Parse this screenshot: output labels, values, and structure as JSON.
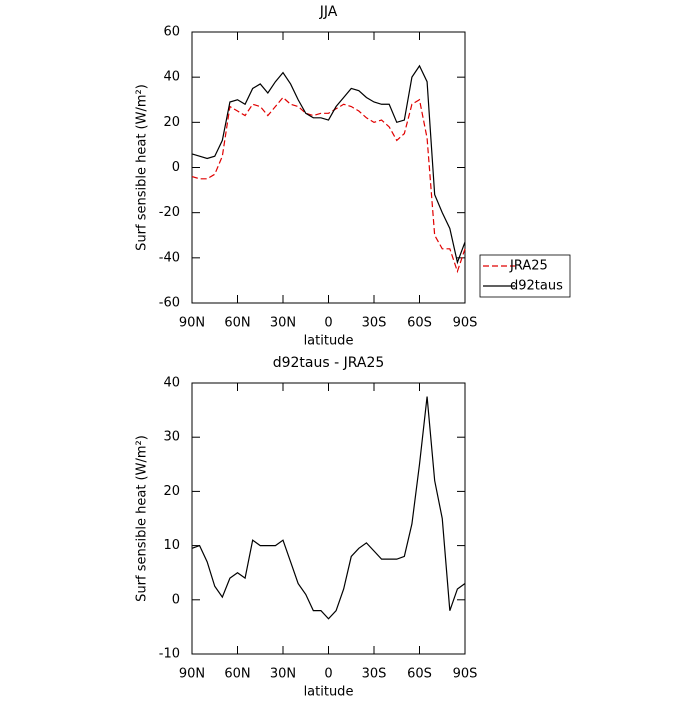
{
  "chart_data": [
    {
      "type": "line",
      "title": "JJA",
      "xlabel": "latitude",
      "ylabel": "Surf sensible heat (W/m²)",
      "x": [
        90,
        85,
        80,
        75,
        70,
        65,
        60,
        55,
        50,
        45,
        40,
        35,
        30,
        25,
        20,
        15,
        10,
        5,
        0,
        -5,
        -10,
        -15,
        -20,
        -25,
        -30,
        -35,
        -40,
        -45,
        -50,
        -55,
        -60,
        -65,
        -70,
        -75,
        -80,
        -85,
        -90
      ],
      "series": [
        {
          "name": "JRA25",
          "color": "#e00000",
          "dashed": true,
          "values": [
            -4,
            -5,
            -5,
            -3,
            5,
            27,
            25,
            23,
            28,
            27,
            23,
            27,
            31,
            28,
            27,
            24,
            23,
            24,
            24,
            26,
            28,
            27,
            25,
            22,
            20,
            21,
            18,
            12,
            15,
            28,
            30,
            13,
            -30,
            -36,
            -36,
            -46,
            -36
          ]
        },
        {
          "name": "d92taus",
          "color": "#000000",
          "dashed": false,
          "values": [
            6,
            5,
            4,
            5,
            12,
            29,
            30,
            28,
            35,
            37,
            33,
            38,
            42,
            37,
            30,
            24,
            22,
            22,
            21,
            27,
            31,
            35,
            34,
            31,
            29,
            28,
            28,
            20,
            21,
            40,
            45,
            38,
            -12,
            -20,
            -27,
            -42,
            -33
          ]
        }
      ],
      "xlim": [
        90,
        -90
      ],
      "xticks": [
        {
          "value": 90,
          "label": "90N"
        },
        {
          "value": 60,
          "label": "60N"
        },
        {
          "value": 30,
          "label": "30N"
        },
        0,
        {
          "value": -30,
          "label": "30S"
        },
        {
          "value": -60,
          "label": "60S"
        },
        {
          "value": -90,
          "label": "90S"
        }
      ],
      "ylim": [
        -60,
        60
      ],
      "yticks": [
        -60,
        -40,
        -20,
        0,
        20,
        40,
        60
      ],
      "legend": "right"
    },
    {
      "type": "line",
      "title": "d92taus - JRA25",
      "xlabel": "latitude",
      "ylabel": "Surf sensible heat (W/m²)",
      "x": [
        90,
        85,
        80,
        75,
        70,
        65,
        60,
        55,
        50,
        45,
        40,
        35,
        30,
        25,
        20,
        15,
        10,
        5,
        0,
        -5,
        -10,
        -15,
        -20,
        -25,
        -30,
        -35,
        -40,
        -45,
        -50,
        -55,
        -60,
        -65,
        -70,
        -75,
        -80,
        -85,
        -90
      ],
      "series": [
        {
          "color": "#000000",
          "dashed": false,
          "values": [
            9.5,
            10,
            7,
            2.5,
            0.5,
            4,
            5,
            4,
            11,
            10,
            10,
            10,
            11,
            7,
            3,
            1,
            -2,
            -2,
            -3.5,
            -2,
            2,
            8,
            9.5,
            10.5,
            9,
            7.5,
            7.5,
            7.5,
            8,
            14,
            25,
            37.5,
            22,
            15,
            -2,
            2,
            3
          ]
        }
      ],
      "xlim": [
        90,
        -90
      ],
      "xticks": [
        {
          "value": 90,
          "label": "90N"
        },
        {
          "value": 60,
          "label": "60N"
        },
        {
          "value": 30,
          "label": "30N"
        },
        0,
        {
          "value": -30,
          "label": "30S"
        },
        {
          "value": -60,
          "label": "60S"
        },
        {
          "value": -90,
          "label": "90S"
        }
      ],
      "ylim": [
        -10,
        40
      ],
      "yticks": [
        -10,
        0,
        10,
        20,
        30,
        40
      ]
    }
  ]
}
